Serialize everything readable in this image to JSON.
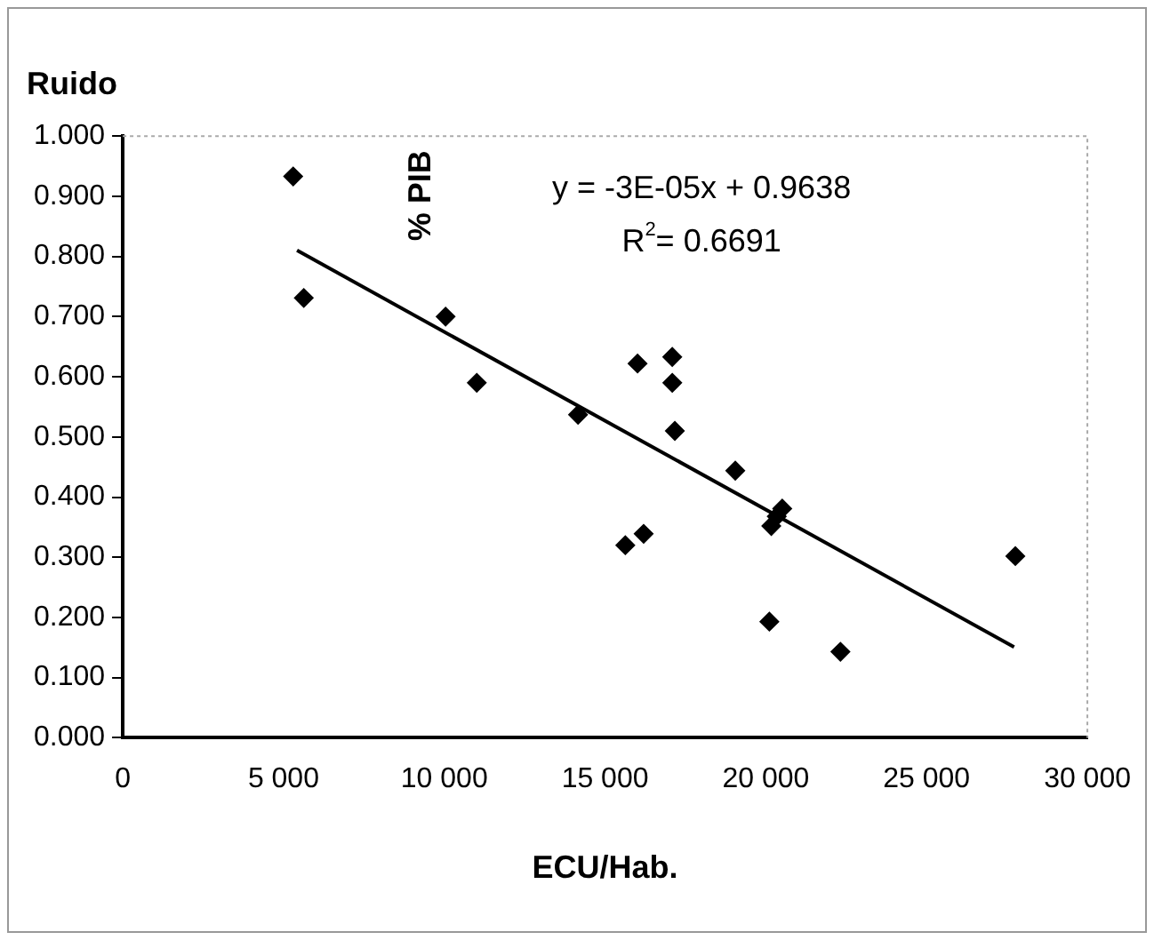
{
  "chart_data": {
    "type": "scatter",
    "title": "Ruido",
    "xlabel": "ECU/Hab.",
    "ylabel": "% PIB",
    "annotations": [
      "y = -3E-05x + 0.9638",
      "R$^{2}$= 0.6691"
    ],
    "xlim": [
      0,
      30000
    ],
    "xticks": [
      0,
      {
        "value": 5000,
        "label": "5 000"
      },
      {
        "value": 10000,
        "label": "10 000"
      },
      {
        "value": 15000,
        "label": "15 000"
      },
      {
        "value": 20000,
        "label": "20 000"
      },
      {
        "value": 25000,
        "label": "25 000"
      },
      {
        "value": 30000,
        "label": "30 000"
      }
    ],
    "ylim": [
      0,
      1
    ],
    "yticks": [
      {
        "value": 0,
        "label": "0.000"
      },
      {
        "value": 0.1,
        "label": "0.100"
      },
      {
        "value": 0.2,
        "label": "0.200"
      },
      {
        "value": 0.3,
        "label": "0.300"
      },
      {
        "value": 0.4,
        "label": "0.400"
      },
      {
        "value": 0.5,
        "label": "0.500"
      },
      {
        "value": 0.6,
        "label": "0.600"
      },
      {
        "value": 0.7,
        "label": "0.700"
      },
      {
        "value": 0.8,
        "label": "0.800"
      },
      {
        "value": 0.9,
        "label": "0.900"
      },
      {
        "value": 1,
        "label": "1.000"
      }
    ],
    "grid": false,
    "legend": false,
    "marker": "diamond",
    "series": [
      {
        "color": "#000000",
        "x": [
          5300,
          5630,
          10040,
          11010,
          14160,
          16010,
          17090,
          17090,
          17170,
          19050,
          20510,
          20340,
          20170,
          15630,
          16200,
          20110,
          22320,
          27760
        ],
        "values": [
          0.933,
          0.731,
          0.7,
          0.59,
          0.537,
          0.622,
          0.633,
          0.59,
          0.51,
          0.444,
          0.381,
          0.368,
          0.352,
          0.32,
          0.339,
          0.193,
          0.143,
          0.302
        ]
      },
      {
        "type": "line",
        "color": "#000000",
        "marker": "none",
        "x": [
          5420,
          27720
        ],
        "values": [
          0.81,
          0.151
        ]
      }
    ]
  }
}
